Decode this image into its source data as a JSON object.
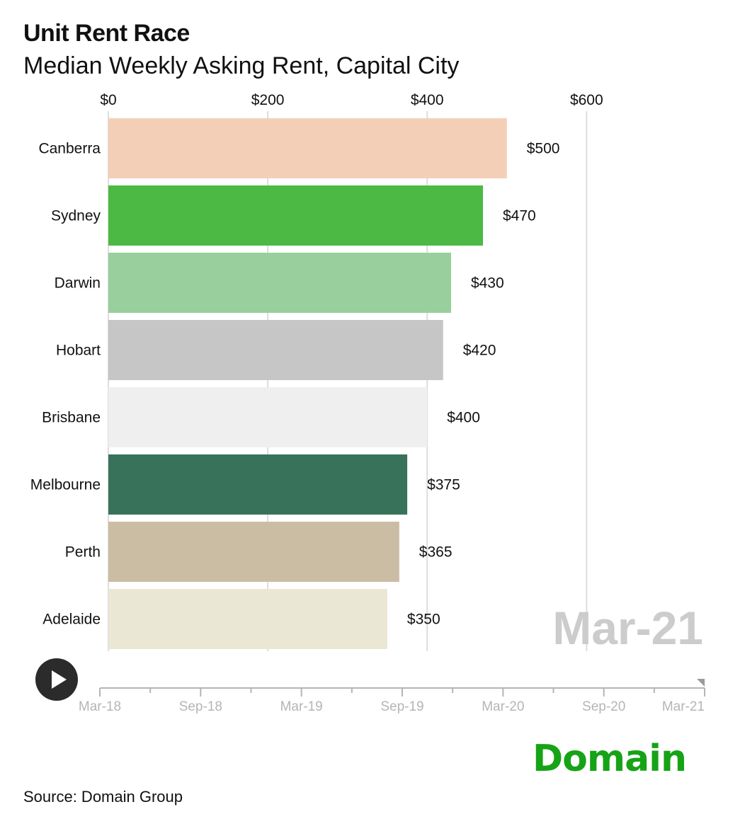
{
  "header": {
    "title": "Unit Rent Race",
    "subtitle": "Median Weekly Asking Rent, Capital City"
  },
  "chart_data": {
    "type": "bar",
    "orientation": "horizontal",
    "categories": [
      "Canberra",
      "Sydney",
      "Darwin",
      "Hobart",
      "Brisbane",
      "Melbourne",
      "Perth",
      "Adelaide"
    ],
    "values": [
      500,
      470,
      430,
      420,
      400,
      375,
      365,
      350
    ],
    "value_labels": [
      "$500",
      "$470",
      "$430",
      "$420",
      "$400",
      "$375",
      "$365",
      "$350"
    ],
    "colors": [
      "#f4cfb8",
      "#4cb944",
      "#98cf9c",
      "#c6c6c6",
      "#efefef",
      "#39725a",
      "#cbbda4",
      "#ebe7d5"
    ],
    "xlim": [
      0,
      750
    ],
    "x_ticks": [
      0,
      200,
      400,
      600
    ],
    "x_tick_labels": [
      "$0",
      "$200",
      "$400",
      "$600"
    ],
    "grid": true,
    "period_label": "Mar-21"
  },
  "timeline": {
    "labels": [
      "Mar-18",
      "Sep-18",
      "Mar-19",
      "Sep-19",
      "Mar-20",
      "Sep-20",
      "Mar-21"
    ],
    "current": "Mar-21"
  },
  "logo_text": "Domain",
  "source": "Source: Domain Group"
}
